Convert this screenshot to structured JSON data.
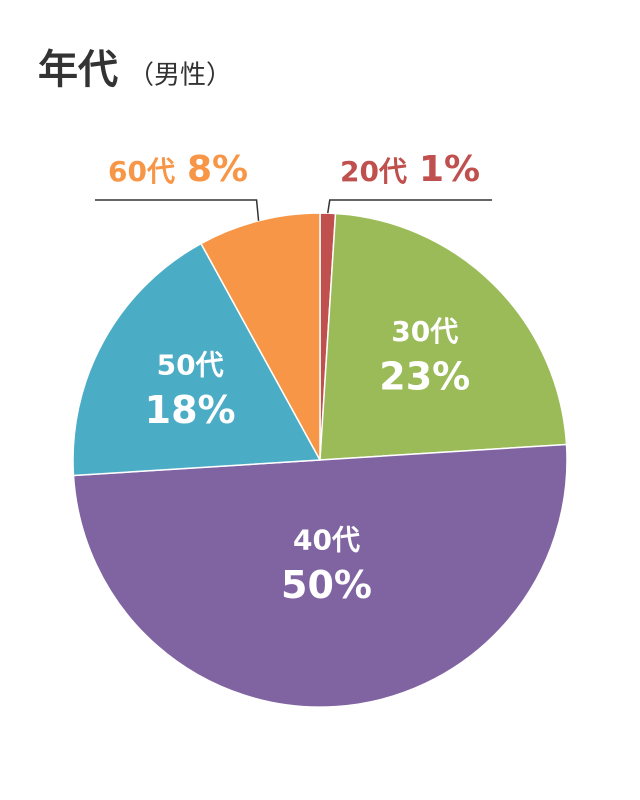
{
  "chart_data": {
    "type": "pie",
    "title": "年代",
    "subtitle": "（男性）",
    "categories": [
      "20代",
      "30代",
      "40代",
      "50代",
      "60代"
    ],
    "values": [
      1,
      23,
      50,
      18,
      8
    ],
    "value_labels": [
      "1%",
      "23%",
      "50%",
      "18%",
      "8%"
    ],
    "colors": [
      "#c0504d",
      "#9bbb59",
      "#8064a2",
      "#4bacc6",
      "#f79646"
    ]
  }
}
